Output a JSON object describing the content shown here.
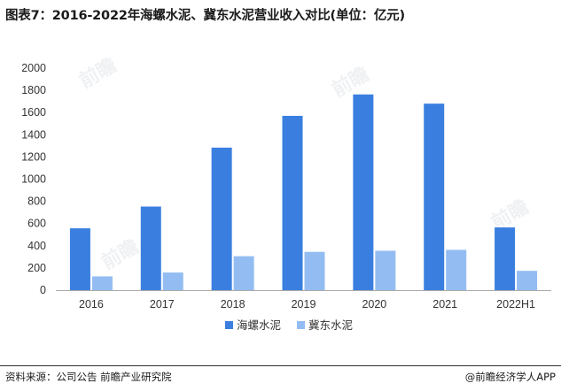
{
  "page": {
    "title": "图表7：2016-2022年海螺水泥、冀东水泥营业收入对比(单位：亿元)",
    "source": "资料来源：公司公告 前瞻产业研究院",
    "brand": "@前瞻经济学人APP"
  },
  "colors": {
    "series1": "#3a7fe0",
    "series2": "#93bdf2",
    "axis": "#aaaaaa"
  },
  "chart_data": {
    "type": "bar",
    "title": "图表7：2016-2022年海螺水泥、冀东水泥营业收入对比(单位：亿元)",
    "xlabel": "",
    "ylabel": "",
    "ylim": [
      0,
      2000
    ],
    "yticks": [
      0,
      200,
      400,
      600,
      800,
      1000,
      1200,
      1400,
      1600,
      1800,
      2000
    ],
    "categories": [
      "2016",
      "2017",
      "2018",
      "2019",
      "2020",
      "2021",
      "2022H1"
    ],
    "series": [
      {
        "name": "海螺水泥",
        "values": [
          557,
          753,
          1284,
          1570,
          1763,
          1680,
          565
        ]
      },
      {
        "name": "冀东水泥",
        "values": [
          124,
          159,
          306,
          345,
          355,
          363,
          174
        ]
      }
    ],
    "legend": "bottom-center",
    "grid": false
  }
}
